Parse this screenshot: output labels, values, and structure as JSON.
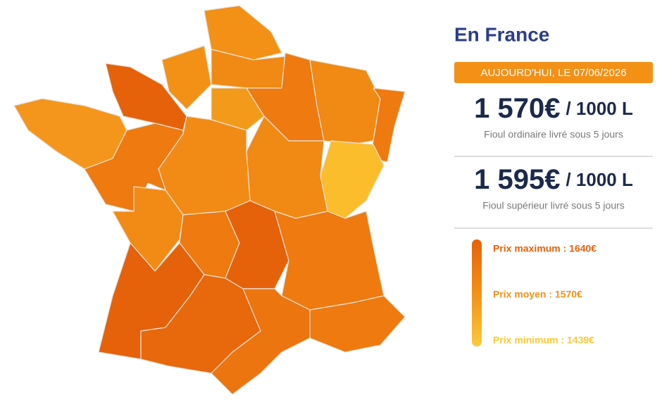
{
  "panel": {
    "title": "En France",
    "date": "AUJOURD'HUI, LE 07/06/2026",
    "prices": [
      {
        "amount": "1 570€",
        "unit": "/ 1000 L",
        "description": "Fioul ordinaire livré sous 5 jours"
      },
      {
        "amount": "1 595€",
        "unit": "/ 1000 L",
        "description": "Fioul supérieur livré sous 5 jours"
      }
    ]
  },
  "legend": [
    {
      "label": "Prix maximum : 1640€",
      "color": "#e5620b"
    },
    {
      "label": "Prix moyen : 1570€",
      "color": "#f39016"
    },
    {
      "label": "Prix minimum : 1439€",
      "color": "#fbc93a"
    }
  ]
}
